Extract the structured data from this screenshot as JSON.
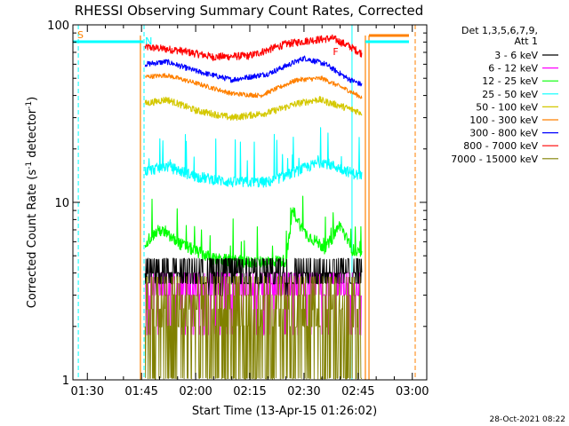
{
  "chart_data": {
    "type": "line",
    "title": "RHESSI Observing Summary Count Rates, Corrected",
    "xlabel": "Start Time (13-Apr-15 01:26:02)",
    "ylabel": "Corrected Count Rate (s",
    "ylabel_sup1": "-1",
    "ylabel_mid": " detector",
    "ylabel_sup2": "-1",
    "ylabel_end": ")",
    "yscale": "log",
    "ylim": [
      1,
      100
    ],
    "xlim": [
      "01:26",
      "03:04"
    ],
    "x_ticks": [
      "01:30",
      "01:45",
      "02:00",
      "02:15",
      "02:30",
      "02:45",
      "03:00"
    ],
    "y_ticks": [
      "1",
      "10",
      "100"
    ],
    "legend": {
      "placement": "top-right",
      "header": [
        "Det 1,3,5,6,7,9,",
        "Att 1"
      ],
      "entries": [
        {
          "label": "3 - 6 keV",
          "color": "#000000"
        },
        {
          "label": "6 - 12 keV",
          "color": "#ff00ff"
        },
        {
          "label": "12 - 25 keV",
          "color": "#00ff00"
        },
        {
          "label": "25 - 50 keV",
          "color": "#00ffff"
        },
        {
          "label": "50 - 100 keV",
          "color": "#d4c800"
        },
        {
          "label": "100 - 300 keV",
          "color": "#ff8000"
        },
        {
          "label": "300 - 800 keV",
          "color": "#0000ff"
        },
        {
          "label": "800 - 7000 keV",
          "color": "#ff0000"
        },
        {
          "label": "7000 - 15000 keV",
          "color": "#808000"
        }
      ]
    },
    "markers": {
      "S": {
        "label": "S",
        "color": "#ff8000"
      },
      "N": {
        "label": "N",
        "color": "#00ffff"
      },
      "F": {
        "label": "F",
        "color": "#ff0000"
      }
    },
    "series": [
      {
        "band": "800 - 7000 keV",
        "color": "#ff0000",
        "x": [
          "01:46",
          "01:55",
          "02:05",
          "02:15",
          "02:25",
          "02:32",
          "02:38",
          "02:43",
          "02:46"
        ],
        "y": [
          75,
          72,
          66,
          67,
          78,
          82,
          84,
          75,
          69
        ]
      },
      {
        "band": "300 - 800 keV",
        "color": "#0000ff",
        "x": [
          "01:46",
          "01:52",
          "02:00",
          "02:10",
          "02:20",
          "02:30",
          "02:36",
          "02:42",
          "02:46"
        ],
        "y": [
          60,
          62,
          55,
          49,
          53,
          65,
          60,
          50,
          46
        ]
      },
      {
        "band": "100 - 300 keV",
        "color": "#ff8000",
        "x": [
          "01:46",
          "01:52",
          "02:00",
          "02:10",
          "02:18",
          "02:28",
          "02:35",
          "02:42",
          "02:46"
        ],
        "y": [
          51,
          52,
          47,
          41,
          40,
          49,
          50,
          43,
          39
        ]
      },
      {
        "band": "50 - 100 keV",
        "color": "#d4c800",
        "x": [
          "01:46",
          "01:52",
          "02:00",
          "02:10",
          "02:20",
          "02:28",
          "02:34",
          "02:42",
          "02:46"
        ],
        "y": [
          36,
          38,
          33,
          30,
          32,
          36,
          38,
          34,
          32
        ]
      },
      {
        "band": "25 - 50 keV",
        "color": "#00ffff",
        "x": [
          "01:46",
          "01:52",
          "02:00",
          "02:10",
          "02:20",
          "02:28",
          "02:35",
          "02:42",
          "02:46"
        ],
        "y": [
          15,
          16,
          14,
          13,
          13,
          15,
          17,
          15,
          14
        ]
      },
      {
        "band": "12 - 25 keV",
        "color": "#00ff00",
        "x": [
          "01:46",
          "01:50",
          "01:56",
          "02:05",
          "02:15",
          "02:25",
          "02:27",
          "02:30",
          "02:36",
          "02:40",
          "02:43",
          "02:46"
        ],
        "y": [
          6,
          7,
          5.8,
          4.8,
          4.6,
          4.7,
          9,
          6.8,
          5.5,
          7.5,
          5.5,
          5
        ]
      },
      {
        "band": "6 - 12 keV",
        "color": "#ff00ff",
        "x": [
          "01:46",
          "02:00",
          "02:15",
          "02:30",
          "02:46"
        ],
        "y": [
          3.4,
          3.5,
          3.6,
          3.5,
          3.4
        ]
      },
      {
        "band": "3 - 6 keV",
        "color": "#000000",
        "x": [
          "01:46",
          "02:00",
          "02:15",
          "02:30",
          "02:46"
        ],
        "y": [
          4,
          3.8,
          3.7,
          3.8,
          3.7
        ]
      },
      {
        "band": "7000 - 15000 keV",
        "color": "#808000",
        "x": [
          "01:46",
          "02:00",
          "02:15",
          "02:30",
          "02:46"
        ],
        "y": [
          2.6,
          2.4,
          2.3,
          2.6,
          2.8
        ]
      }
    ]
  },
  "footer_timestamp": "28-Oct-2021 08:22"
}
